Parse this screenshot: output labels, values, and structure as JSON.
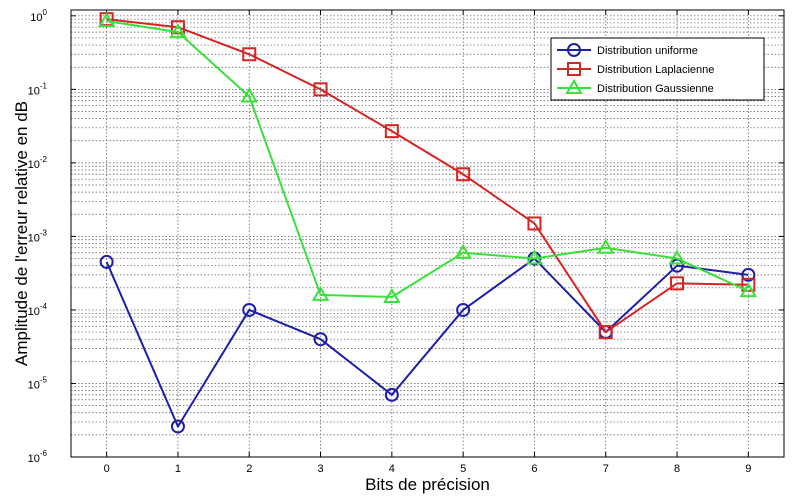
{
  "chart_data": {
    "type": "line",
    "xlabel": "Bits de précision",
    "ylabel": "Amplitude de l'erreur relative en dB",
    "x": [
      0,
      1,
      2,
      3,
      4,
      5,
      6,
      7,
      8,
      9
    ],
    "xlim": [
      -0.5,
      9.5
    ],
    "ylim": [
      1e-06,
      1.2
    ],
    "yscale": "log",
    "yticks": [
      {
        "value": 1e-06,
        "base": "10",
        "exp": "-6"
      },
      {
        "value": 1e-05,
        "base": "10",
        "exp": "-5"
      },
      {
        "value": 0.0001,
        "base": "10",
        "exp": "-4"
      },
      {
        "value": 0.001,
        "base": "10",
        "exp": "-3"
      },
      {
        "value": 0.01,
        "base": "10",
        "exp": "-2"
      },
      {
        "value": 0.1,
        "base": "10",
        "exp": "-1"
      },
      {
        "value": 1,
        "base": "10",
        "exp": "0"
      }
    ],
    "grid": true,
    "legend_position": "top-right",
    "series": [
      {
        "name": "Distribution uniforme",
        "color": "#1f1fa8",
        "marker": "circle",
        "values": [
          0.00045,
          2.6e-06,
          0.0001,
          4e-05,
          7e-06,
          0.0001,
          0.0005,
          5e-05,
          0.0004,
          0.0003
        ]
      },
      {
        "name": "Distribution Laplacienne",
        "color": "#d42424",
        "marker": "square",
        "values": [
          0.9,
          0.7,
          0.3,
          0.1,
          0.027,
          0.007,
          0.0015,
          5e-05,
          0.00023,
          0.00022
        ]
      },
      {
        "name": "Distribution Gaussienne",
        "color": "#3ae03a",
        "marker": "triangle",
        "values": [
          0.85,
          0.6,
          0.08,
          0.00016,
          0.00015,
          0.0006,
          0.0005,
          0.0007,
          0.0005,
          0.00018
        ]
      }
    ]
  }
}
